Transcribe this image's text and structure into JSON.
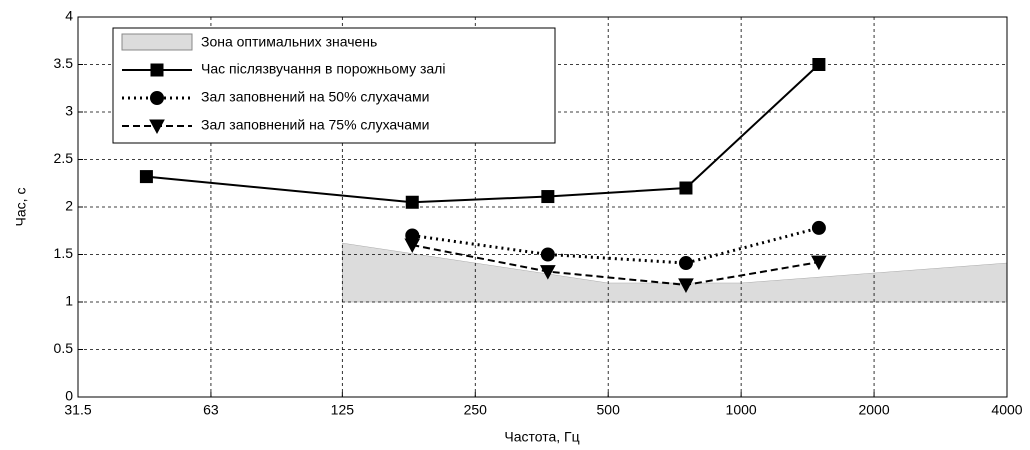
{
  "chart_data": {
    "type": "line",
    "xlabel": "Частота, Гц",
    "ylabel": "Час, с",
    "xscale": "log",
    "xlim": [
      31.5,
      4000
    ],
    "xticks": [
      31.5,
      63,
      125,
      250,
      500,
      1000,
      2000,
      4000
    ],
    "ylim": [
      0,
      4
    ],
    "yticks": [
      0,
      0.5,
      1,
      1.5,
      2,
      2.5,
      3,
      3.5,
      4
    ],
    "grid": true,
    "legend": "upper left",
    "area": {
      "name": "Зона оптимальних значень",
      "color": "#dcdcdc",
      "x": [
        125,
        500,
        1000,
        4000
      ],
      "upper": [
        1.62,
        1.2,
        1.2,
        1.41
      ],
      "lower": [
        1,
        1,
        1,
        1
      ]
    },
    "series": [
      {
        "name": "Час післязвучання в порожньому залі",
        "color": "#000000",
        "marker": "square",
        "linestyle": "solid",
        "x": [
          45,
          180,
          365,
          750,
          1500
        ],
        "values": [
          2.32,
          2.05,
          2.11,
          2.2,
          3.5
        ]
      },
      {
        "name": "Зал заповнений на 50% слухачами",
        "color": "#000000",
        "marker": "circle",
        "linestyle": "dotted",
        "x": [
          180,
          365,
          750,
          1500
        ],
        "values": [
          1.7,
          1.5,
          1.41,
          1.78
        ]
      },
      {
        "name": "Зал заповнений на 75% слухачами",
        "color": "#000000",
        "marker": "triangle-down",
        "linestyle": "dashed",
        "x": [
          180,
          365,
          750,
          1500
        ],
        "values": [
          1.6,
          1.32,
          1.18,
          1.42
        ]
      }
    ]
  }
}
